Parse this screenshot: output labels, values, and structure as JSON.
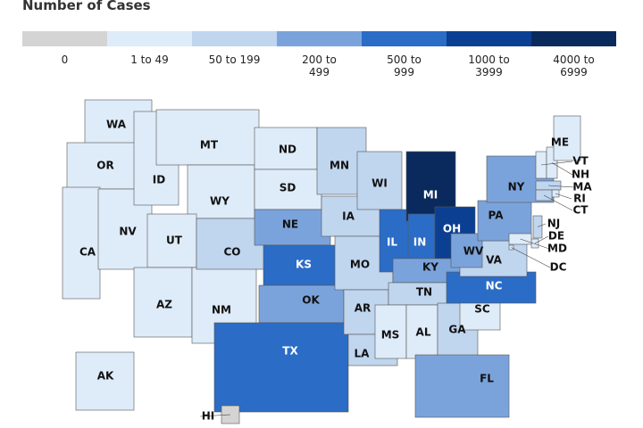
{
  "title": "Number of Cases",
  "legend": [
    {
      "label": "0",
      "color": "#d4d4d4"
    },
    {
      "label": "1 to 49",
      "color": "#deebf8"
    },
    {
      "label": "50 to 199",
      "color": "#c0d5ee"
    },
    {
      "label": "200 to 499",
      "color": "#7ba3db"
    },
    {
      "label": "500 to 999",
      "color": "#2b6cc6"
    },
    {
      "label": "1000 to 3999",
      "color": "#0b3f92"
    },
    {
      "label": "4000 to 6999",
      "color": "#0a2a5e"
    }
  ],
  "states": [
    {
      "label": "WA",
      "color": "#deebf8"
    },
    {
      "label": "OR",
      "color": "#deebf8"
    },
    {
      "label": "CA",
      "color": "#deebf8"
    },
    {
      "label": "NV",
      "color": "#deebf8"
    },
    {
      "label": "ID",
      "color": "#deebf8"
    },
    {
      "label": "MT",
      "color": "#deebf8"
    },
    {
      "label": "WY",
      "color": "#deebf8"
    },
    {
      "label": "UT",
      "color": "#deebf8"
    },
    {
      "label": "AZ",
      "color": "#deebf8"
    },
    {
      "label": "NM",
      "color": "#deebf8"
    },
    {
      "label": "CO",
      "color": "#c0d5ee"
    },
    {
      "label": "ND",
      "color": "#deebf8"
    },
    {
      "label": "SD",
      "color": "#deebf8"
    },
    {
      "label": "NE",
      "color": "#7ba3db"
    },
    {
      "label": "KS",
      "color": "#2b6cc6"
    },
    {
      "label": "OK",
      "color": "#7ba3db"
    },
    {
      "label": "TX",
      "color": "#2b6cc6"
    },
    {
      "label": "MN",
      "color": "#c0d5ee"
    },
    {
      "label": "IA",
      "color": "#c0d5ee"
    },
    {
      "label": "MO",
      "color": "#c0d5ee"
    },
    {
      "label": "AR",
      "color": "#c0d5ee"
    },
    {
      "label": "LA",
      "color": "#c0d5ee"
    },
    {
      "label": "WI",
      "color": "#c0d5ee"
    },
    {
      "label": "IL",
      "color": "#2b6cc6"
    },
    {
      "label": "MI",
      "color": "#0a2a5e"
    },
    {
      "label": "IN",
      "color": "#2b6cc6"
    },
    {
      "label": "OH",
      "color": "#0b3f92"
    },
    {
      "label": "KY",
      "color": "#7ba3db"
    },
    {
      "label": "TN",
      "color": "#c0d5ee"
    },
    {
      "label": "MS",
      "color": "#deebf8"
    },
    {
      "label": "AL",
      "color": "#deebf8"
    },
    {
      "label": "GA",
      "color": "#c0d5ee"
    },
    {
      "label": "FL",
      "color": "#7ba3db"
    },
    {
      "label": "SC",
      "color": "#deebf8"
    },
    {
      "label": "NC",
      "color": "#2b6cc6"
    },
    {
      "label": "VA",
      "color": "#c0d5ee"
    },
    {
      "label": "WV",
      "color": "#7ba3db"
    },
    {
      "label": "PA",
      "color": "#7ba3db"
    },
    {
      "label": "NY",
      "color": "#7ba3db"
    },
    {
      "label": "VT",
      "color": "#deebf8"
    },
    {
      "label": "NH",
      "color": "#deebf8"
    },
    {
      "label": "ME",
      "color": "#deebf8"
    },
    {
      "label": "MA",
      "color": "#c0d5ee"
    },
    {
      "label": "RI",
      "color": "#deebf8"
    },
    {
      "label": "CT",
      "color": "#c0d5ee"
    },
    {
      "label": "NJ",
      "color": "#c0d5ee"
    },
    {
      "label": "DE",
      "color": "#deebf8"
    },
    {
      "label": "MD",
      "color": "#deebf8"
    },
    {
      "label": "DC",
      "color": "#deebf8"
    },
    {
      "label": "AK",
      "color": "#deebf8"
    },
    {
      "label": "HI",
      "color": "#d4d4d4"
    }
  ]
}
